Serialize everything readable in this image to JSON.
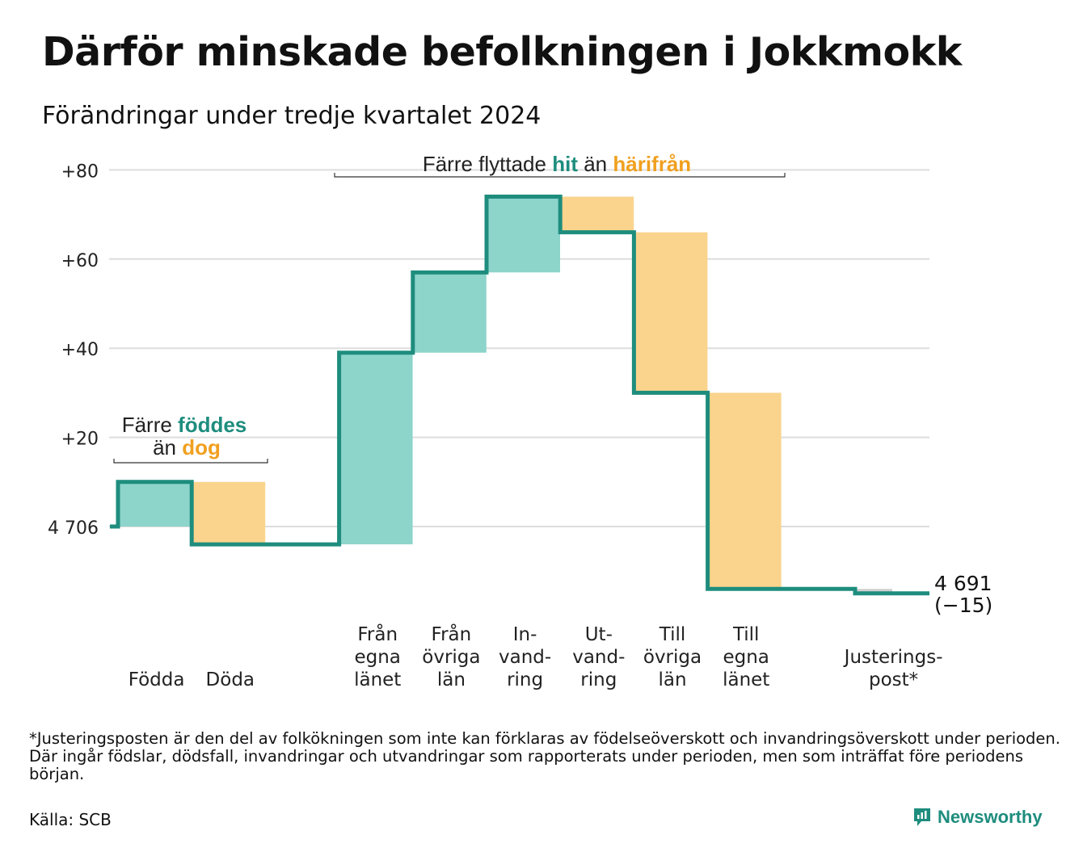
{
  "title": "Därför minskade befolkningen i Jokkmokk",
  "subtitle": "Förändringar under tredje kvartalet 2024",
  "footnote": "*Justeringsposten är den del av folkökningen som inte kan förklaras av födelseöverskott och invandringsöverskott under perioden. Där ingår födslar, dödsfall, invandringar och utvandringar som rapporterats under perioden, men som inträffat före periodens början.",
  "source": "Källa: SCB",
  "brand": "Newsworthy",
  "colors": {
    "positive": "#8dd4cb",
    "negative": "#fad48c",
    "line": "#1e8d7e",
    "adjustment": "#cfcfcf",
    "teal_text": "#1e8d7e",
    "orange_text": "#f0a020",
    "grid": "#dddddd"
  },
  "chart_data": {
    "type": "waterfall",
    "start_value": 4706,
    "start_label": "4 706",
    "end_value": 4691,
    "end_label": "4 691",
    "end_change_label": "(−15)",
    "y_ticks": [
      {
        "value": 20,
        "label": "+20"
      },
      {
        "value": 40,
        "label": "+40"
      },
      {
        "value": 60,
        "label": "+60"
      },
      {
        "value": 80,
        "label": "+80"
      }
    ],
    "ylim": [
      -18,
      84
    ],
    "categories": [
      {
        "label": [
          "Födda"
        ],
        "value": 10
      },
      {
        "label": [
          "Döda"
        ],
        "value": -14
      },
      {
        "label": [],
        "value": 0
      },
      {
        "label": [
          "Från",
          "egna",
          "länet"
        ],
        "value": 43
      },
      {
        "label": [
          "Från",
          "övriga",
          "län"
        ],
        "value": 18
      },
      {
        "label": [
          "In-",
          "vand-",
          "ring"
        ],
        "value": 17
      },
      {
        "label": [
          "Ut-",
          "vand-",
          "ring"
        ],
        "value": -8
      },
      {
        "label": [
          "Till",
          "övriga",
          "län"
        ],
        "value": -36
      },
      {
        "label": [
          "Till",
          "egna",
          "länet"
        ],
        "value": -44
      },
      {
        "label": [],
        "value": 0
      },
      {
        "label": [
          "Justerings-",
          "post*"
        ],
        "value": -1
      }
    ],
    "annotations": [
      {
        "parts": [
          {
            "text": "Färre ",
            "color": "dark"
          },
          {
            "text": "föddes",
            "color": "teal"
          }
        ],
        "parts2": [
          {
            "text": "än ",
            "color": "dark"
          },
          {
            "text": "dog",
            "color": "orange"
          }
        ],
        "span": [
          0,
          1
        ]
      },
      {
        "parts": [
          {
            "text": "Färre flyttade ",
            "color": "dark"
          },
          {
            "text": "hit",
            "color": "teal"
          },
          {
            "text": " än ",
            "color": "dark"
          },
          {
            "text": "härifrån",
            "color": "orange"
          }
        ],
        "span": [
          3,
          8
        ]
      }
    ]
  }
}
